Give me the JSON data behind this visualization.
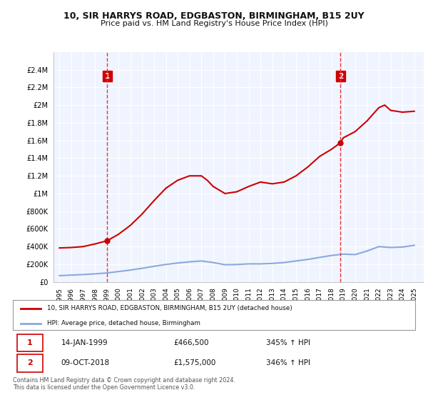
{
  "title": "10, SIR HARRYS ROAD, EDGBASTON, BIRMINGHAM, B15 2UY",
  "subtitle": "Price paid vs. HM Land Registry's House Price Index (HPI)",
  "legend_line1": "10, SIR HARRYS ROAD, EDGBASTON, BIRMINGHAM, B15 2UY (detached house)",
  "legend_line2": "HPI: Average price, detached house, Birmingham",
  "annotation1_date": "14-JAN-1999",
  "annotation1_price": "£466,500",
  "annotation1_hpi": "345% ↑ HPI",
  "annotation2_date": "09-OCT-2018",
  "annotation2_price": "£1,575,000",
  "annotation2_hpi": "346% ↑ HPI",
  "footer": "Contains HM Land Registry data © Crown copyright and database right 2024.\nThis data is licensed under the Open Government Licence v3.0.",
  "ylim_min": 0,
  "ylim_max": 2600000,
  "yticks": [
    0,
    200000,
    400000,
    600000,
    800000,
    1000000,
    1200000,
    1400000,
    1600000,
    1800000,
    2000000,
    2200000,
    2400000
  ],
  "ytick_labels": [
    "£0",
    "£200K",
    "£400K",
    "£600K",
    "£800K",
    "£1M",
    "£1.2M",
    "£1.4M",
    "£1.6M",
    "£1.8M",
    "£2M",
    "£2.2M",
    "£2.4M"
  ],
  "xticks": [
    1995,
    1996,
    1997,
    1998,
    1999,
    2000,
    2001,
    2002,
    2003,
    2004,
    2005,
    2006,
    2007,
    2008,
    2009,
    2010,
    2011,
    2012,
    2013,
    2014,
    2015,
    2016,
    2017,
    2018,
    2019,
    2020,
    2021,
    2022,
    2023,
    2024,
    2025
  ],
  "sale1_x": 1999.04,
  "sale1_y": 466500,
  "sale2_x": 2018.77,
  "sale2_y": 1575000,
  "bg_color": "#ffffff",
  "plot_bg_color": "#f0f4ff",
  "grid_color": "#ffffff",
  "house_line_color": "#cc0000",
  "hpi_line_color": "#88aadd",
  "vline_color": "#ee3333",
  "marker_color": "#cc0000",
  "annotation_box_color": "#cc0000",
  "xlim_start": 1994.5,
  "xlim_end": 2025.8,
  "hpi_years": [
    1995,
    1996,
    1997,
    1998,
    1999,
    2000,
    2001,
    2002,
    2003,
    2004,
    2005,
    2006,
    2007,
    2008,
    2009,
    2010,
    2011,
    2012,
    2013,
    2014,
    2015,
    2016,
    2017,
    2018,
    2019,
    2020,
    2021,
    2022,
    2023,
    2024,
    2025
  ],
  "hpi_values": [
    72000,
    78000,
    84000,
    92000,
    102000,
    118000,
    135000,
    155000,
    178000,
    198000,
    215000,
    228000,
    238000,
    220000,
    195000,
    198000,
    205000,
    205000,
    210000,
    220000,
    238000,
    255000,
    278000,
    300000,
    315000,
    310000,
    350000,
    400000,
    390000,
    395000,
    415000
  ],
  "house_years": [
    1995,
    1996,
    1997,
    1998,
    1999.04,
    2000,
    2001,
    2002,
    2003,
    2004,
    2005,
    2006,
    2007,
    2007.5,
    2008,
    2009,
    2010,
    2011,
    2012,
    2013,
    2014,
    2015,
    2016,
    2017,
    2018,
    2018.77,
    2019,
    2020,
    2021,
    2022,
    2022.5,
    2023,
    2024,
    2025
  ],
  "house_values": [
    385000,
    390000,
    400000,
    430000,
    466500,
    540000,
    640000,
    770000,
    920000,
    1060000,
    1150000,
    1200000,
    1200000,
    1150000,
    1080000,
    1000000,
    1020000,
    1080000,
    1130000,
    1110000,
    1130000,
    1200000,
    1300000,
    1420000,
    1500000,
    1575000,
    1630000,
    1700000,
    1820000,
    1970000,
    2000000,
    1940000,
    1920000,
    1930000
  ]
}
